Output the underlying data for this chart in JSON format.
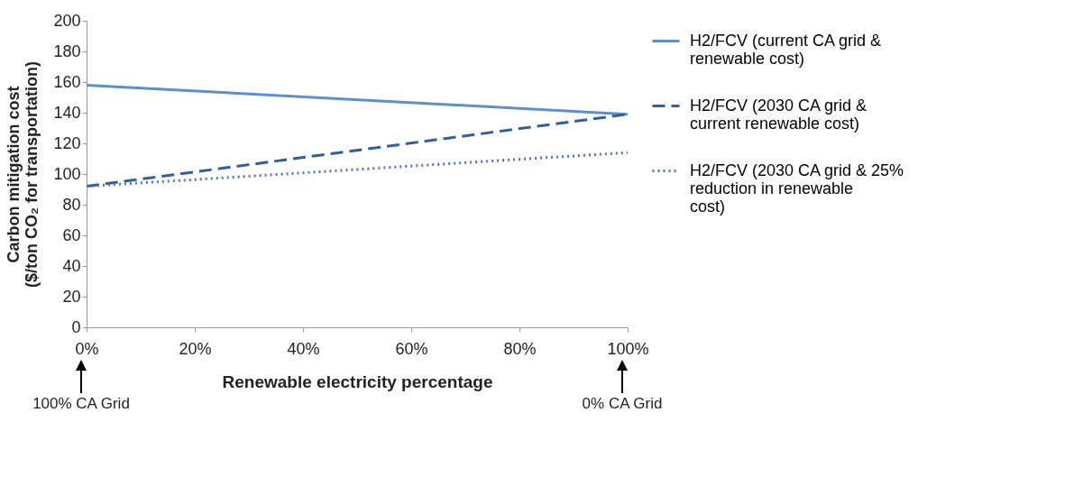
{
  "chart_data": {
    "type": "line",
    "xlabel": "Renewable electricity percentage",
    "ylabel": "Carbon mitigation cost ($/ton CO₂ for transportation)",
    "x": [
      0,
      100
    ],
    "series": [
      {
        "name": "H2/FCV (current CA grid & renewable cost)",
        "color": "#5b8fd0",
        "line_style": "solid",
        "values": [
          158,
          139
        ]
      },
      {
        "name": "H2/FCV (2030 CA grid & current renewable cost)",
        "color": "#335f97",
        "line_style": "dashed",
        "values": [
          92,
          139
        ]
      },
      {
        "name": "H2/FCV (2030 CA grid & 25% reduction in renewable cost)",
        "color": "#4a78b8",
        "line_style": "dotted",
        "values": [
          92,
          114
        ]
      }
    ],
    "xlim": [
      0,
      100
    ],
    "xticks": [
      {
        "value": 0,
        "label": "0%"
      },
      {
        "value": 20,
        "label": "20%"
      },
      {
        "value": 40,
        "label": "40%"
      },
      {
        "value": 60,
        "label": "60%"
      },
      {
        "value": 80,
        "label": "80%"
      },
      {
        "value": 100,
        "label": "100%"
      }
    ],
    "ylim": [
      0,
      200
    ],
    "yticks": [
      0,
      20,
      40,
      60,
      80,
      100,
      120,
      140,
      160,
      180,
      200
    ],
    "grid": false,
    "legend": "right",
    "annotations": [
      "100% CA Grid",
      "0% CA Grid"
    ]
  }
}
